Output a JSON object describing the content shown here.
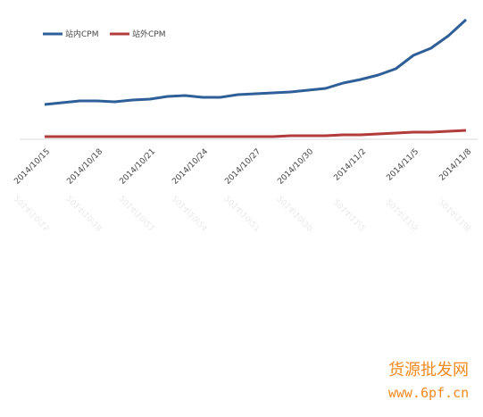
{
  "chart_data": {
    "type": "line",
    "categories": [
      "2014/10/15",
      null,
      null,
      "2014/10/18",
      null,
      null,
      "2014/10/21",
      null,
      null,
      "2014/10/24",
      null,
      null,
      "2014/10/27",
      null,
      null,
      "2014/10/30",
      null,
      null,
      "2014/11/2",
      null,
      null,
      "2014/11/5",
      null,
      null,
      "2014/11/8"
    ],
    "series": [
      {
        "name": "站内CPM",
        "color": "#2f5f98",
        "values": [
          39,
          41,
          43,
          43,
          42,
          44,
          45,
          48,
          49,
          47,
          47,
          50,
          51,
          52,
          53,
          55,
          57,
          63,
          67,
          72,
          79,
          94,
          102,
          116,
          134
        ]
      },
      {
        "name": "站外CPM",
        "color": "#b23b3b",
        "values": [
          3,
          3,
          3,
          3,
          3,
          3,
          3,
          3,
          3,
          3,
          3,
          3,
          3,
          3,
          4,
          4,
          4,
          5,
          5,
          6,
          7,
          8,
          8,
          9,
          10
        ]
      }
    ],
    "legend": "top-left"
  },
  "watermark": {
    "name": "货源批发网",
    "url": "www.6pf.cn"
  }
}
